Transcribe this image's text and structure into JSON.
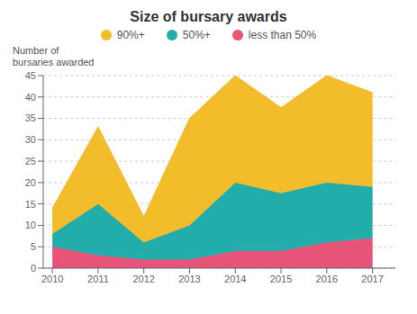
{
  "chart_data": {
    "type": "area",
    "title": "Size of bursary awards",
    "ylabel": "Number of\nbursaries awarded",
    "x": [
      2010,
      2011,
      2012,
      2013,
      2014,
      2015,
      2016,
      2017
    ],
    "series": [
      {
        "name": "less than 50%",
        "color": "#E8537A",
        "values": [
          5,
          3,
          2,
          2,
          4,
          4,
          6,
          7
        ]
      },
      {
        "name": "50%+",
        "color": "#22ADAB",
        "values": [
          3,
          12,
          4,
          8,
          16,
          13.5,
          14,
          12
        ]
      },
      {
        "name": "90%+",
        "color": "#F2BC2B",
        "values": [
          6,
          18,
          6,
          25,
          25,
          20,
          25,
          22
        ]
      }
    ],
    "stacked": true,
    "xlim": [
      2009.8,
      2017.5
    ],
    "xticks": [
      2010,
      2011,
      2012,
      2013,
      2014,
      2015,
      2016,
      2017
    ],
    "ylim": [
      0,
      45
    ],
    "yticks": [
      0,
      5,
      10,
      15,
      20,
      25,
      30,
      35,
      40,
      45
    ],
    "grid": true,
    "legend": "top"
  }
}
